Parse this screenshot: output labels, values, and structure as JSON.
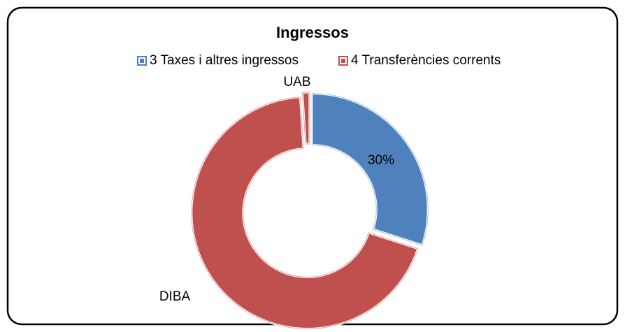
{
  "chart_data": {
    "type": "donut",
    "title": "Ingressos",
    "legend": [
      {
        "name": "3 Taxes i altres ingressos",
        "color": "#4f81bd"
      },
      {
        "name": "4 Transferències corrents",
        "color": "#c0504d"
      }
    ],
    "slices": [
      {
        "label": "30%",
        "value": 30,
        "color": "#4f81bd"
      },
      {
        "label": "DIBA",
        "value": 69,
        "color": "#c0504d"
      },
      {
        "label": "UAB",
        "value": 1,
        "color": "#c0504d"
      }
    ]
  }
}
